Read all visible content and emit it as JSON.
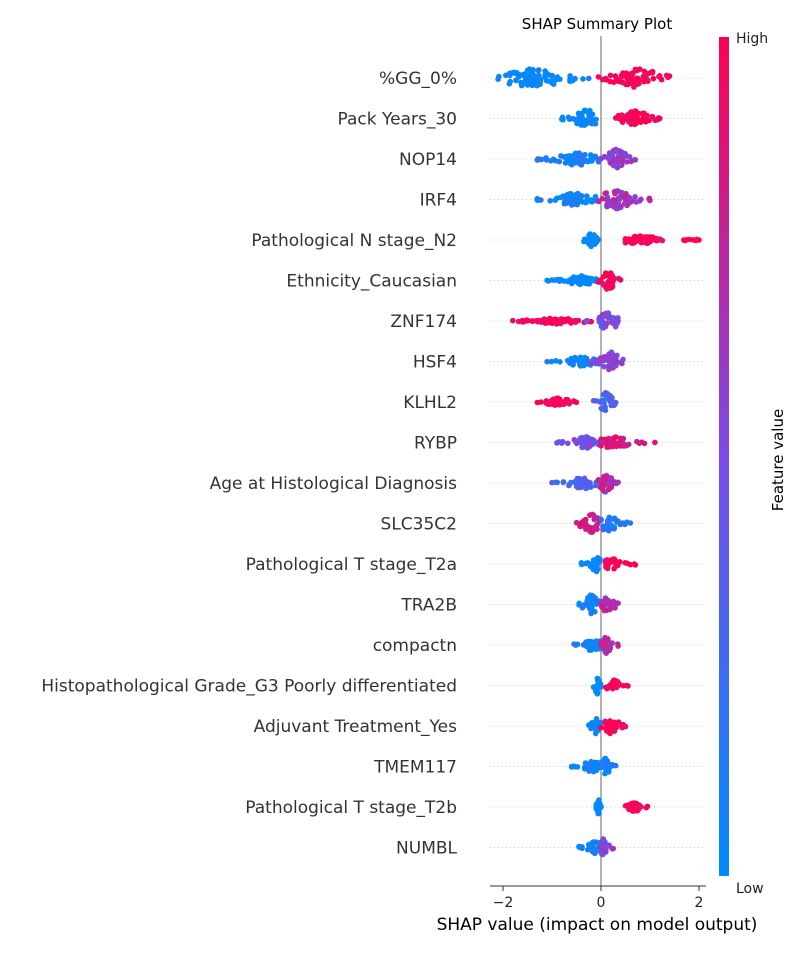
{
  "chart_data": {
    "type": "scatter",
    "title": "SHAP Summary Plot",
    "xlabel": "SHAP value (impact on model output)",
    "colorbar": {
      "label": "Feature value",
      "high_label": "High",
      "low_label": "Low",
      "low_color": "#008bfb",
      "high_color": "#ff0052"
    },
    "xlim": [
      -2.25,
      2.1
    ],
    "xticks": [
      -2,
      0,
      2
    ],
    "xtick_labels": [
      "−2",
      "0",
      "2"
    ],
    "features": [
      {
        "name": "%GG_0%",
        "neg": {
          "min": -2.1,
          "max": -0.25,
          "peak": -1.4,
          "width": 1,
          "level": 0.0
        },
        "pos": {
          "min": -0.05,
          "max": 1.4,
          "peak": 0.75,
          "width": 1,
          "level": 1.0
        }
      },
      {
        "name": "Pack Years_30",
        "neg": {
          "min": -0.8,
          "max": -0.1,
          "peak": -0.3,
          "width": 1,
          "level": 0.0
        },
        "pos": {
          "min": 0.3,
          "max": 1.2,
          "peak": 0.7,
          "width": 0.8,
          "level": 1.0
        }
      },
      {
        "name": "NOP14",
        "neg": {
          "min": -1.3,
          "max": -0.05,
          "peak": -0.5,
          "width": 0.7,
          "level": 0.1
        },
        "pos": {
          "min": 0.0,
          "max": 0.7,
          "peak": 0.3,
          "width": 1,
          "level": 0.6
        }
      },
      {
        "name": "IRF4",
        "neg": {
          "min": -1.3,
          "max": -0.1,
          "peak": -0.5,
          "width": 0.7,
          "level": 0.05
        },
        "pos": {
          "min": -0.05,
          "max": 1.0,
          "peak": 0.3,
          "width": 1,
          "level": 0.65
        }
      },
      {
        "name": "Pathological N stage_N2",
        "neg": {
          "min": -0.35,
          "max": -0.05,
          "peak": -0.2,
          "width": 0.8,
          "level": 0.0
        },
        "pos": {
          "min": 0.5,
          "max": 2.0,
          "peak": 0.8,
          "width": 0.4,
          "level": 1.0
        }
      },
      {
        "name": "Ethnicity_Caucasian",
        "neg": {
          "min": -1.1,
          "max": -0.1,
          "peak": -0.4,
          "width": 0.5,
          "level": 0.0
        },
        "pos": {
          "min": -0.05,
          "max": 0.4,
          "peak": 0.15,
          "width": 1,
          "level": 1.0
        }
      },
      {
        "name": "ZNF174",
        "neg": {
          "min": -1.8,
          "max": -0.2,
          "peak": -0.9,
          "width": 0.3,
          "level": 0.95
        },
        "pos": {
          "min": -0.3,
          "max": 0.35,
          "peak": 0.15,
          "width": 1,
          "level": 0.5
        }
      },
      {
        "name": "HSF4",
        "neg": {
          "min": -1.1,
          "max": -0.1,
          "peak": -0.4,
          "width": 0.5,
          "level": 0.05
        },
        "pos": {
          "min": -0.2,
          "max": 0.45,
          "peak": 0.2,
          "width": 1,
          "level": 0.55
        }
      },
      {
        "name": "KLHL2",
        "neg": {
          "min": -1.3,
          "max": -0.5,
          "peak": -0.9,
          "width": 0.4,
          "level": 1.0
        },
        "pos": {
          "min": -0.15,
          "max": 0.3,
          "peak": 0.1,
          "width": 1,
          "level": 0.3
        }
      },
      {
        "name": "RYBP",
        "neg": {
          "min": -0.9,
          "max": -0.05,
          "peak": -0.3,
          "width": 0.6,
          "level": 0.45
        },
        "pos": {
          "min": 0.0,
          "max": 1.1,
          "peak": 0.25,
          "width": 0.6,
          "level": 0.85
        }
      },
      {
        "name": "Age at Histological Diagnosis",
        "neg": {
          "min": -1.0,
          "max": -0.05,
          "peak": -0.35,
          "width": 0.6,
          "level": 0.3
        },
        "pos": {
          "min": -0.05,
          "max": 0.35,
          "peak": 0.1,
          "width": 1,
          "level": 0.75
        }
      },
      {
        "name": "SLC35C2",
        "neg": {
          "min": -0.5,
          "max": 0.0,
          "peak": -0.2,
          "width": 1,
          "level": 0.85
        },
        "pos": {
          "min": 0.0,
          "max": 0.6,
          "peak": 0.15,
          "width": 0.9,
          "level": 0.15
        }
      },
      {
        "name": "Pathological T stage_T2a",
        "neg": {
          "min": -0.4,
          "max": -0.02,
          "peak": -0.1,
          "width": 0.8,
          "level": 0.0
        },
        "pos": {
          "min": 0.1,
          "max": 0.7,
          "peak": 0.2,
          "width": 0.6,
          "level": 1.0
        }
      },
      {
        "name": "TRA2B",
        "neg": {
          "min": -0.45,
          "max": 0.0,
          "peak": -0.2,
          "width": 1,
          "level": 0.05
        },
        "pos": {
          "min": 0.0,
          "max": 0.35,
          "peak": 0.15,
          "width": 1,
          "level": 0.7
        }
      },
      {
        "name": "compactn",
        "neg": {
          "min": -0.55,
          "max": 0.0,
          "peak": -0.15,
          "width": 0.7,
          "level": 0.1
        },
        "pos": {
          "min": 0.0,
          "max": 0.35,
          "peak": 0.1,
          "width": 0.9,
          "level": 0.75
        }
      },
      {
        "name": "Histopathological Grade_G3 Poorly differentiated",
        "neg": {
          "min": -0.15,
          "max": 0.0,
          "peak": -0.08,
          "width": 1,
          "level": 0.0
        },
        "pos": {
          "min": 0.1,
          "max": 0.55,
          "peak": 0.25,
          "width": 0.6,
          "level": 1.0
        }
      },
      {
        "name": "Adjuvant Treatment_Yes",
        "neg": {
          "min": -0.25,
          "max": 0.0,
          "peak": -0.1,
          "width": 0.8,
          "level": 0.0
        },
        "pos": {
          "min": 0.0,
          "max": 0.5,
          "peak": 0.2,
          "width": 0.8,
          "level": 1.0
        }
      },
      {
        "name": "TMEM117",
        "neg": {
          "min": -0.6,
          "max": 0.0,
          "peak": -0.15,
          "width": 0.7,
          "level": 0.0
        },
        "pos": {
          "min": 0.0,
          "max": 0.3,
          "peak": 0.1,
          "width": 0.9,
          "level": 0.1
        }
      },
      {
        "name": "Pathological T stage_T2b",
        "neg": {
          "min": -0.1,
          "max": 0.0,
          "peak": -0.05,
          "width": 0.8,
          "level": 0.0
        },
        "pos": {
          "min": 0.5,
          "max": 0.95,
          "peak": 0.7,
          "width": 0.5,
          "level": 1.0
        }
      },
      {
        "name": "NUMBL",
        "neg": {
          "min": -0.45,
          "max": 0.0,
          "peak": -0.1,
          "width": 0.7,
          "level": 0.05
        },
        "pos": {
          "min": 0.0,
          "max": 0.25,
          "peak": 0.05,
          "width": 0.9,
          "level": 0.55
        }
      }
    ]
  }
}
